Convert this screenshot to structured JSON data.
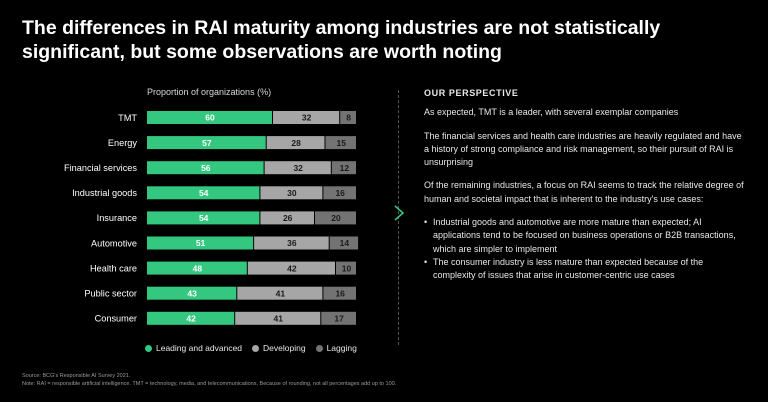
{
  "title": {
    "line1": "The differences in RAI maturity among industries are not statistically",
    "line2": "significant, but some observations are worth noting"
  },
  "colors": {
    "leading": "#33c77f",
    "developing": "#a6a6a6",
    "lagging": "#737373",
    "accent": "#33c77f"
  },
  "chart_data": {
    "type": "bar",
    "orientation": "horizontal",
    "stacked": true,
    "title": "",
    "xlabel": "Proportion of organizations (%)",
    "xlim": [
      0,
      100
    ],
    "categories": [
      "TMT",
      "Energy",
      "Financial services",
      "Industrial goods",
      "Insurance",
      "Automotive",
      "Health care",
      "Public sector",
      "Consumer"
    ],
    "series": [
      {
        "name": "Leading and advanced",
        "values": [
          60,
          57,
          56,
          54,
          54,
          51,
          48,
          43,
          42
        ]
      },
      {
        "name": "Developing",
        "values": [
          32,
          28,
          32,
          30,
          26,
          36,
          42,
          41,
          41
        ]
      },
      {
        "name": "Lagging",
        "values": [
          8,
          15,
          12,
          16,
          20,
          14,
          10,
          16,
          17
        ]
      }
    ],
    "legend": [
      "Leading and advanced",
      "Developing",
      "Lagging"
    ],
    "legend_position": "bottom"
  },
  "perspective": {
    "heading": "OUR PERSPECTIVE",
    "para1": "As expected, TMT is a leader, with several exemplar companies",
    "para2": "The financial services and health care industries are heavily regulated and have a history of strong compliance and risk management, so their pursuit of RAI is unsurprising",
    "para3": "Of the remaining industries, a focus on RAI seems to track the relative degree of human and societal impact that is inherent to the industry's use cases:",
    "bullet1": "Industrial goods and automotive are more mature than expected; AI applications tend to be focused on business operations or B2B transactions, which are simpler to implement",
    "bullet2": "The consumer industry is less mature than expected because of the complexity of issues that arise in customer-centric use cases"
  },
  "source": {
    "line1": "Source: BCG's Responsible AI Survey 2021.",
    "line2": "Note: RAI = responsible artificial intelligence. TMT = technology, media, and telecommunications. Because of rounding, not all percentages add up to 100."
  }
}
